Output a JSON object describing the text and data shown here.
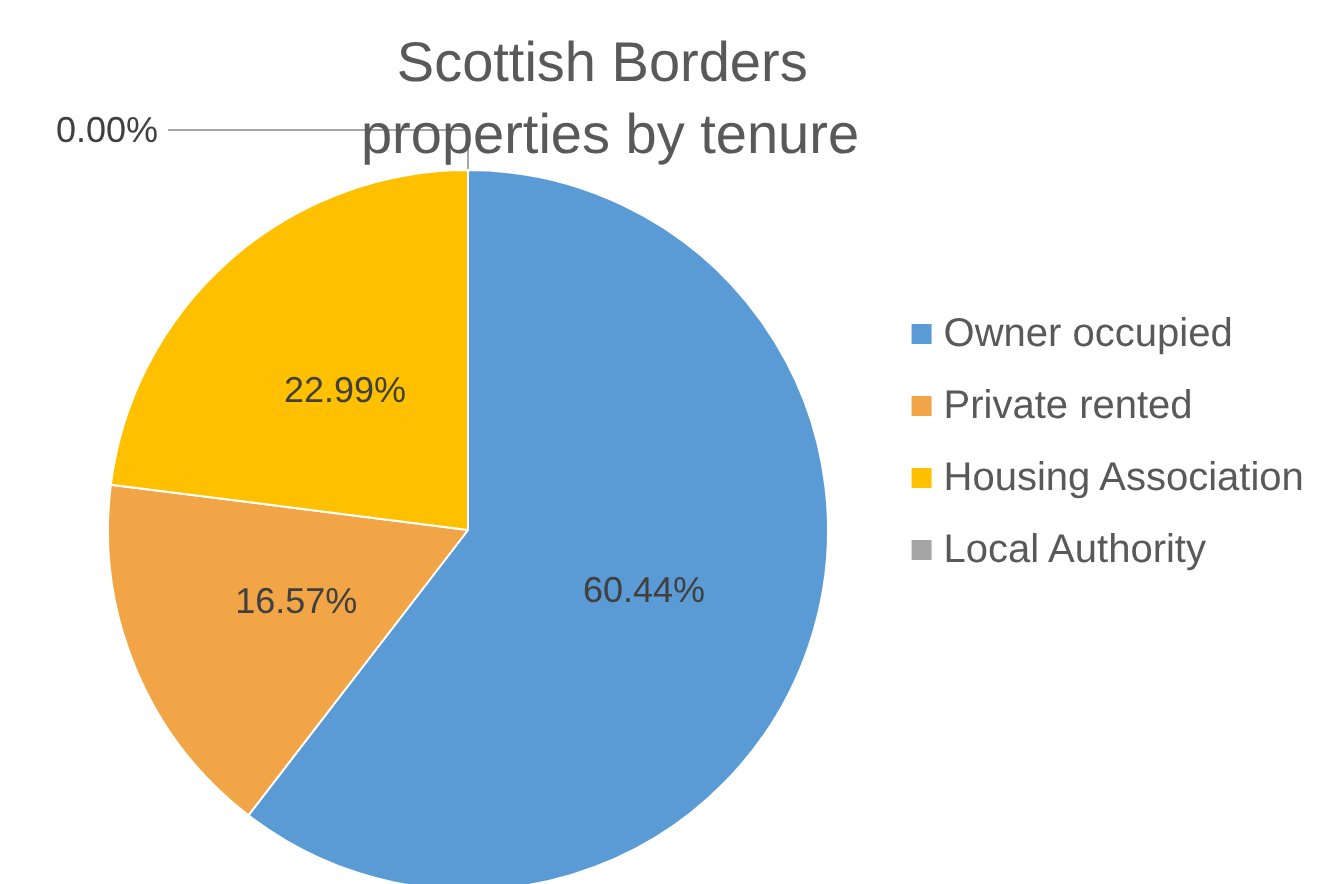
{
  "chart_data": {
    "type": "pie",
    "title": "Scottish Borders properties by tenure",
    "categories": [
      "Owner occupied",
      "Private rented",
      "Housing Association",
      "Local Authority"
    ],
    "values": [
      60.44,
      16.57,
      22.99,
      0.0
    ],
    "colors": [
      "#5b9bd5",
      "#f2a546",
      "#ffc000",
      "#a5a5a5"
    ],
    "value_labels": [
      "60.44%",
      "16.57%",
      "22.99%",
      "0.00%"
    ],
    "legend": "right"
  }
}
